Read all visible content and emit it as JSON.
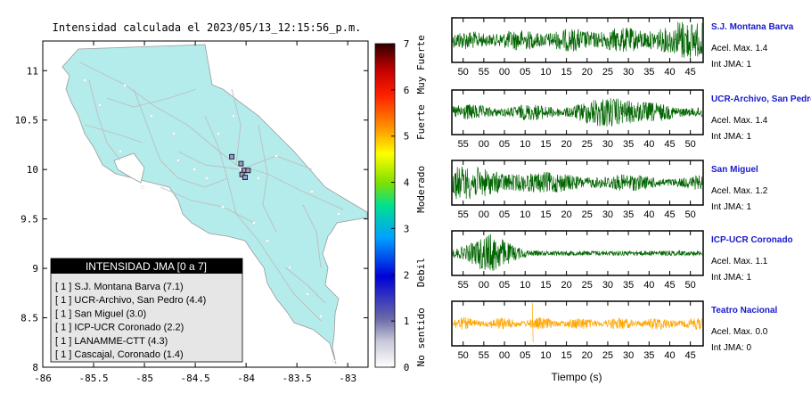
{
  "map": {
    "title": "Intensidad calculada el 2023/05/13_12:15:56_p.m.",
    "x_ticks": [
      "-86",
      "-85.5",
      "-85",
      "-84.5",
      "-84",
      "-83.5",
      "-83"
    ],
    "y_ticks": [
      "11",
      "10.5",
      "10",
      "9.5",
      "9",
      "8.5",
      "8"
    ],
    "xlim": [
      -86,
      -82.8
    ],
    "ylim": [
      8,
      11.3
    ],
    "legend": {
      "title": "INTENSIDAD JMA [0 a 7]",
      "items": [
        "[ 1 ]  S.J. Montana Barva (7.1)",
        "[ 1 ]  UCR-Archivo, San Pedro (4.4)",
        "[ 1 ]  San Miguel (3.0)",
        "[ 1 ]  ICP-UCR Coronado (2.2)",
        "[ 1 ]  LANAMME-CTT (4.3)",
        "[ 1 ]  Cascajal, Coronado (1.4)"
      ]
    },
    "stations": [
      {
        "lon": -84.14,
        "lat": 10.13
      },
      {
        "lon": -84.05,
        "lat": 10.06
      },
      {
        "lon": -84.02,
        "lat": 9.99
      },
      {
        "lon": -83.98,
        "lat": 9.99
      },
      {
        "lon": -84.04,
        "lat": 9.95
      },
      {
        "lon": -84.01,
        "lat": 9.92
      }
    ]
  },
  "colorbar": {
    "ticks": [
      "0",
      "1",
      "2",
      "3",
      "4",
      "5",
      "6",
      "7"
    ],
    "range": [
      0,
      7
    ],
    "labels": [
      "No sentido",
      "Debil",
      "Moderado",
      "Fuerte",
      "Muy Fuerte"
    ]
  },
  "chart_data": {
    "type": "line",
    "xlabel": "Tiempo (s)",
    "panels": [
      {
        "name": "S.J. Montana Barva",
        "acel": "Acel. Max. 1.4",
        "int": "Int JMA: 1",
        "color": "#006400",
        "ticks": [
          "50",
          "55",
          "00",
          "05",
          "10",
          "15",
          "20",
          "25",
          "30",
          "35",
          "40",
          "45"
        ],
        "first_tick_frac": 0.045,
        "tick_step_frac": 0.0822,
        "envelope": "growing"
      },
      {
        "name": "UCR-Archivo, San Pedro",
        "acel": "Acel. Max. 1.4",
        "int": "Int JMA: 1",
        "color": "#006400",
        "ticks": [
          "55",
          "00",
          "05",
          "10",
          "15",
          "20",
          "25",
          "30",
          "35",
          "40",
          "45",
          "50"
        ],
        "first_tick_frac": 0.045,
        "tick_step_frac": 0.0822,
        "envelope": "midburst"
      },
      {
        "name": "San Miguel",
        "acel": "Acel. Max. 1.2",
        "int": "Int JMA: 1",
        "color": "#006400",
        "ticks": [
          "55",
          "00",
          "05",
          "10",
          "15",
          "20",
          "25",
          "30",
          "35",
          "40",
          "45",
          "50"
        ],
        "first_tick_frac": 0.045,
        "tick_step_frac": 0.0822,
        "envelope": "early"
      },
      {
        "name": "ICP-UCR Coronado",
        "acel": "Acel. Max. 1.1",
        "int": "Int JMA: 1",
        "color": "#006400",
        "ticks": [
          "55",
          "00",
          "05",
          "10",
          "15",
          "20",
          "25",
          "30",
          "35",
          "40",
          "45",
          "50"
        ],
        "first_tick_frac": 0.045,
        "tick_step_frac": 0.0822,
        "envelope": "earlyburst"
      },
      {
        "name": "Teatro Nacional",
        "acel": "Acel. Max. 0.0",
        "int": "Int JMA: 0",
        "color": "#FFA500",
        "ticks": [
          "50",
          "55",
          "00",
          "05",
          "10",
          "15",
          "20",
          "25",
          "30",
          "35",
          "40",
          "45"
        ],
        "first_tick_frac": 0.045,
        "tick_step_frac": 0.0822,
        "envelope": "flat"
      }
    ]
  }
}
